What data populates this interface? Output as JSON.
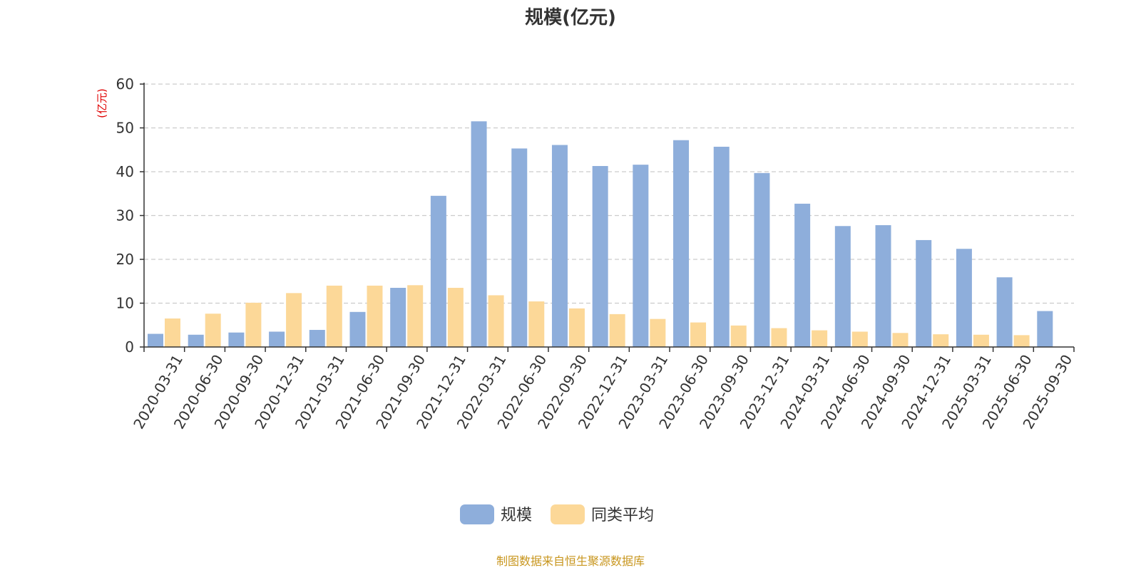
{
  "chart_data": {
    "type": "bar",
    "title": "规模(亿元)",
    "ylabel": "(亿元)",
    "xlabel": "",
    "ylim": [
      0,
      60
    ],
    "yticks": [
      0,
      10,
      20,
      30,
      40,
      50,
      60
    ],
    "grid": true,
    "legend_position": "bottom",
    "categories": [
      "2020-03-31",
      "2020-06-30",
      "2020-09-30",
      "2020-12-31",
      "2021-03-31",
      "2021-06-30",
      "2021-09-30",
      "2021-12-31",
      "2022-03-31",
      "2022-06-30",
      "2022-09-30",
      "2022-12-31",
      "2023-03-31",
      "2023-06-30",
      "2023-09-30",
      "2023-12-31",
      "2024-03-31",
      "2024-06-30",
      "2024-09-30",
      "2024-12-31",
      "2025-03-31",
      "2025-06-30",
      "2025-09-30"
    ],
    "series": [
      {
        "name": "规模",
        "color": "#8eaedb",
        "values": [
          3.0,
          2.8,
          3.3,
          3.5,
          3.9,
          8.0,
          13.5,
          34.5,
          51.5,
          45.3,
          46.1,
          41.3,
          41.6,
          47.2,
          45.7,
          39.7,
          32.7,
          27.6,
          27.8,
          24.4,
          22.4,
          15.9,
          8.2
        ]
      },
      {
        "name": "同类平均",
        "color": "#fcd898",
        "values": [
          6.5,
          7.6,
          10.1,
          12.3,
          14.0,
          14.0,
          14.1,
          13.5,
          11.8,
          10.4,
          8.8,
          7.5,
          6.4,
          5.6,
          4.9,
          4.3,
          3.8,
          3.5,
          3.2,
          2.9,
          2.8,
          2.7,
          null
        ]
      }
    ]
  },
  "footer": {
    "source": "制图数据来自恒生聚源数据库",
    "color": "#c8961e"
  }
}
